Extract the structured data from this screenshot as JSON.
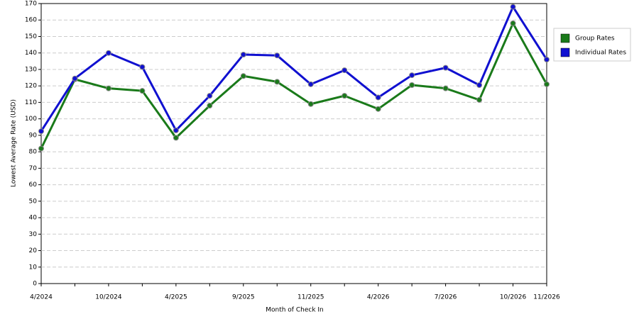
{
  "chart_data": {
    "type": "line",
    "x_label": "Month of Check In",
    "y_label": "Lowest Average Rate (USD)",
    "categories": [
      "4/2024",
      null,
      "10/2024",
      null,
      "4/2025",
      null,
      "9/2025",
      null,
      "11/2025",
      null,
      "4/2026",
      null,
      "7/2026",
      null,
      "10/2026",
      "11/2026"
    ],
    "series": [
      {
        "name": "Group Rates",
        "color": "#1a7a1a",
        "values": [
          82,
          124,
          118.5,
          117,
          88.5,
          108,
          126,
          122.5,
          109,
          114,
          106,
          120.5,
          118.5,
          111.5,
          158,
          121
        ]
      },
      {
        "name": "Individual Rates",
        "color": "#1010d0",
        "values": [
          92.5,
          124.5,
          140,
          131.5,
          93,
          114,
          139,
          138.5,
          121,
          129.5,
          113,
          126.5,
          131,
          120.5,
          168,
          136
        ]
      }
    ],
    "ylim": [
      0,
      170
    ],
    "yticks": [
      0,
      10,
      20,
      30,
      40,
      50,
      60,
      70,
      80,
      90,
      100,
      110,
      120,
      130,
      140,
      150,
      160,
      170
    ],
    "grid": true,
    "legend": "right"
  }
}
